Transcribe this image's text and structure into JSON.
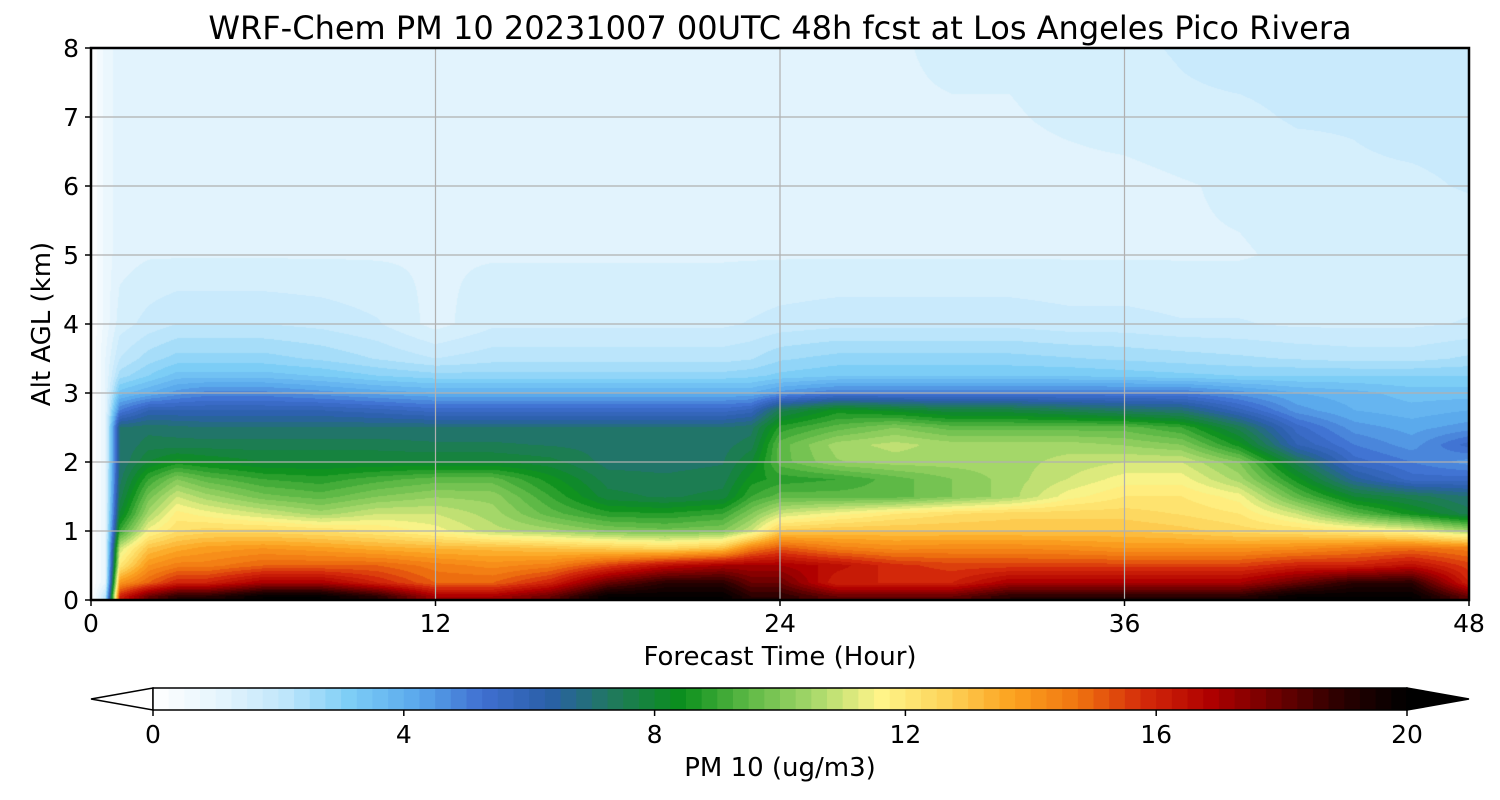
{
  "chart_data": {
    "type": "heatmap",
    "title": "WRF-Chem PM 10  20231007 00UTC 48h fcst at Los Angeles Pico Rivera",
    "xlabel": "Forecast Time (Hour)",
    "ylabel": "Alt AGL (km)",
    "xlim": [
      0,
      48
    ],
    "ylim": [
      0,
      8
    ],
    "xticks": [
      0,
      12,
      24,
      36,
      48
    ],
    "yticks": [
      0,
      1,
      2,
      3,
      4,
      5,
      6,
      7,
      8
    ],
    "grid": true,
    "colorbar": {
      "label": "PM 10  (ug/m3)",
      "min": 0,
      "max": 20,
      "ticks": [
        0,
        4,
        8,
        12,
        16,
        20
      ],
      "extend": "both",
      "colors": [
        "#ffffff",
        "#e6f5fd",
        "#bfe6fb",
        "#7ccdf6",
        "#5aa8ec",
        "#3f6fd0",
        "#2a5fa8",
        "#1f7a5a",
        "#0a8f1c",
        "#5cb845",
        "#a6d86a",
        "#fff58a",
        "#fdd45a",
        "#fca320",
        "#f07510",
        "#d42a0a",
        "#b00000",
        "#6e0000",
        "#2a0000",
        "#000000"
      ]
    },
    "x_hours": [
      0,
      0.5,
      1,
      2,
      3,
      4,
      6,
      8,
      10,
      12,
      14,
      16,
      18,
      20,
      22,
      23,
      24,
      26,
      28,
      30,
      32,
      34,
      36,
      38,
      40,
      42,
      44,
      46,
      48
    ],
    "y_km": [
      0.05,
      0.25,
      0.5,
      0.75,
      1.0,
      1.25,
      1.5,
      1.75,
      2.0,
      2.25,
      2.5,
      2.75,
      3.0,
      3.25,
      3.5,
      4.0,
      5.0,
      6.0,
      7.0,
      8.0
    ],
    "pm10_ugm3": [
      [
        0,
        2,
        16,
        18,
        19,
        19,
        20,
        20,
        19,
        17,
        17,
        18,
        20,
        20,
        20,
        19,
        19,
        18,
        18,
        18,
        19,
        19,
        19,
        19,
        19,
        20,
        20,
        20,
        18
      ],
      [
        0,
        1,
        14,
        15,
        16,
        16,
        17,
        17,
        16,
        15,
        15,
        16,
        18,
        19,
        19,
        18,
        18,
        16,
        16,
        16,
        17,
        17,
        17,
        17,
        17,
        18,
        19,
        19,
        16
      ],
      [
        0,
        1,
        12,
        14,
        14.5,
        14.5,
        15,
        15,
        15,
        14.5,
        14.2,
        14.5,
        15.5,
        16.5,
        17,
        17,
        17,
        16.5,
        15.8,
        15.5,
        15.5,
        15.5,
        15.5,
        15.5,
        15.5,
        16,
        16,
        16.5,
        15.5
      ],
      [
        0,
        1,
        11,
        13,
        13.5,
        13.8,
        14,
        13.8,
        13.5,
        13.3,
        13.2,
        13,
        12.8,
        12.5,
        13,
        14.5,
        15.2,
        14.5,
        14.2,
        14.3,
        14.3,
        14.2,
        14,
        14,
        14,
        14.2,
        14.5,
        14.8,
        14.5
      ],
      [
        0,
        1,
        9,
        11.5,
        12.3,
        12.5,
        12.5,
        12.3,
        12,
        11.5,
        10.8,
        10.5,
        10,
        9.8,
        10,
        11,
        12.8,
        13,
        13,
        13,
        13,
        13,
        13,
        12.8,
        12.5,
        12.3,
        12,
        11.5,
        10.5
      ],
      [
        0,
        1,
        8,
        10.5,
        11.8,
        11.5,
        11,
        10.5,
        11,
        11,
        10.5,
        9.5,
        8.8,
        8.7,
        9,
        10,
        11,
        11.5,
        12,
        12.3,
        12.5,
        12.5,
        12.5,
        12.3,
        12,
        11,
        9.5,
        8.5,
        7.5
      ],
      [
        0,
        1,
        7.5,
        9.8,
        11,
        10.5,
        9.8,
        9.5,
        10,
        10.3,
        10.2,
        9,
        7.8,
        7.6,
        7.8,
        9,
        9.5,
        9.5,
        9.5,
        10,
        10.5,
        11.5,
        12,
        12,
        11.5,
        9.5,
        8,
        7.5,
        7
      ],
      [
        0,
        1,
        7.2,
        9,
        10,
        9.5,
        9,
        8.8,
        9.2,
        9.5,
        9.5,
        8.5,
        7.5,
        7.4,
        7.5,
        8.5,
        8.8,
        9,
        9.5,
        10,
        10.5,
        11,
        11.5,
        11.5,
        10.5,
        8.5,
        6.5,
        5.5,
        5.5
      ],
      [
        0,
        1,
        7,
        8,
        8.5,
        8.3,
        8,
        8,
        8,
        8,
        8,
        7.8,
        7.2,
        7.2,
        7.3,
        8,
        9.5,
        10.3,
        10.5,
        10.5,
        10.5,
        10.8,
        11,
        11,
        10,
        7.5,
        5.5,
        5,
        4.5
      ],
      [
        0,
        1,
        7,
        7.5,
        7.5,
        7.5,
        7.5,
        7.5,
        7.5,
        7.4,
        7.4,
        7.3,
        7.2,
        7.2,
        7.2,
        7.5,
        9.5,
        10.5,
        10.8,
        10.5,
        10.5,
        10.5,
        10.3,
        10,
        8.5,
        6,
        5,
        4.5,
        5.5
      ],
      [
        0,
        1,
        7,
        7.2,
        7.1,
        7,
        7,
        7,
        7,
        7,
        7,
        7,
        7,
        7,
        7,
        7.2,
        8.8,
        9.5,
        10,
        9.5,
        9.5,
        9.5,
        9.5,
        9,
        7.5,
        5.5,
        4.5,
        4.2,
        4.5
      ],
      [
        0,
        1,
        5,
        6,
        6,
        6,
        6,
        6,
        5.8,
        5.5,
        5.5,
        5.5,
        5.5,
        5.5,
        5.5,
        5.8,
        7.5,
        8.5,
        8.2,
        7.8,
        7.8,
        7.5,
        7.2,
        7,
        5.8,
        4.5,
        4,
        3.8,
        4
      ],
      [
        0,
        1,
        3.5,
        4,
        4.5,
        4.8,
        4.8,
        4.5,
        4.2,
        4,
        4,
        4,
        4,
        4,
        4,
        4,
        4.5,
        5,
        5,
        5,
        5,
        5,
        5,
        5,
        4.5,
        4,
        3.8,
        3.5,
        3.5
      ],
      [
        0,
        1,
        2.5,
        3,
        3.5,
        3.5,
        3.5,
        3.3,
        3,
        2.8,
        2.8,
        2.8,
        2.8,
        2.8,
        2.8,
        2.9,
        3.1,
        3.3,
        3.3,
        3.3,
        3.3,
        3.3,
        3.2,
        3.1,
        3,
        3,
        3,
        3,
        3
      ],
      [
        0,
        1,
        2,
        2.5,
        2.8,
        2.8,
        2.8,
        2.6,
        2.3,
        2,
        2.2,
        2.2,
        2.2,
        2.2,
        2.2,
        2.3,
        2.6,
        2.8,
        2.8,
        2.8,
        2.8,
        2.7,
        2.6,
        2.5,
        2.4,
        2.3,
        2.2,
        2.2,
        2.4
      ],
      [
        0,
        0.8,
        1.5,
        1.8,
        2,
        2,
        2,
        1.9,
        1.7,
        1.2,
        1.6,
        1.6,
        1.6,
        1.6,
        1.6,
        1.7,
        1.8,
        1.9,
        1.9,
        1.9,
        1.9,
        1.8,
        1.8,
        1.7,
        1.7,
        1.6,
        1.6,
        1.6,
        1.7
      ],
      [
        0,
        0.8,
        1.2,
        1.3,
        1.3,
        1.3,
        1.3,
        1.3,
        1.3,
        1.3,
        1.3,
        1.3,
        1.3,
        1.3,
        1.3,
        1.3,
        1.3,
        1.3,
        1.3,
        1.3,
        1.3,
        1.3,
        1.3,
        1.3,
        1.3,
        1.4,
        1.4,
        1.4,
        1.4
      ],
      [
        0,
        0.8,
        1.2,
        1.2,
        1.2,
        1.2,
        1.2,
        1.2,
        1.2,
        1.2,
        1.2,
        1.2,
        1.2,
        1.2,
        1.2,
        1.2,
        1.2,
        1.2,
        1.2,
        1.2,
        1.2,
        1.2,
        1.2,
        1.3,
        1.4,
        1.5,
        1.6,
        1.6,
        1.7
      ],
      [
        0,
        0.8,
        1.2,
        1.2,
        1.2,
        1.2,
        1.2,
        1.2,
        1.2,
        1.2,
        1.2,
        1.2,
        1.2,
        1.2,
        1.2,
        1.2,
        1.2,
        1.3,
        1.3,
        1.3,
        1.3,
        1.4,
        1.5,
        1.6,
        1.6,
        1.7,
        1.7,
        1.8,
        1.8
      ],
      [
        0,
        0.8,
        1.2,
        1.2,
        1.2,
        1.3,
        1.3,
        1.2,
        1.2,
        1.2,
        1.2,
        1.2,
        1.3,
        1.3,
        1.3,
        1.3,
        1.3,
        1.3,
        1.3,
        1.4,
        1.4,
        1.5,
        1.6,
        1.7,
        1.8,
        1.8,
        1.9,
        1.9,
        1.8
      ]
    ]
  }
}
